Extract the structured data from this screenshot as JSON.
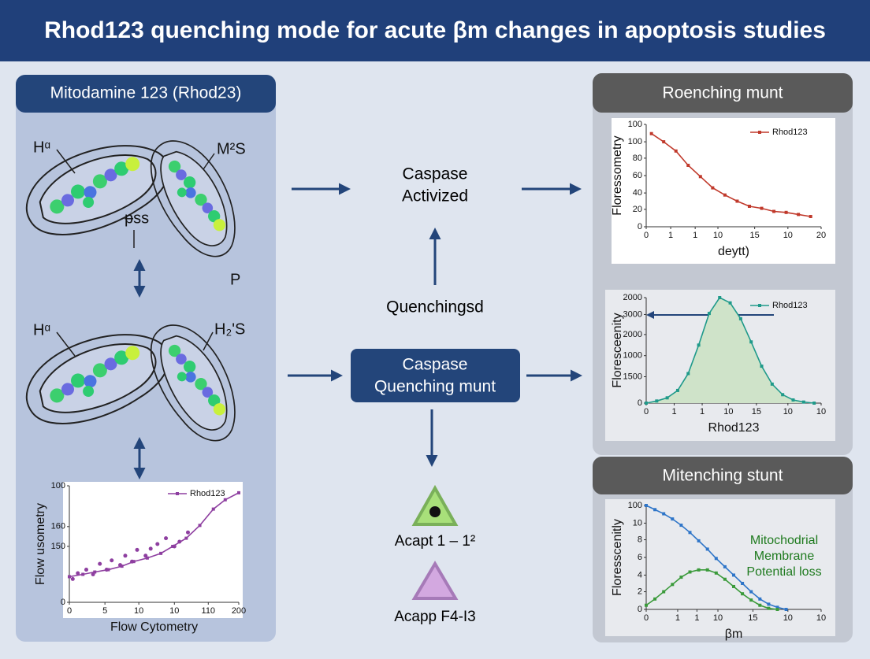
{
  "header": {
    "title": "Rhod123 quenching mode for acute βm changes in apoptosis studies"
  },
  "left_panel": {
    "title": "Mitodamine 123 (Rhod23)",
    "labels": [
      "Hᵅ",
      "M²S",
      "ᵽss",
      "P",
      "Hᵅ",
      "H₂'S"
    ]
  },
  "center": {
    "top_box": [
      "Caspase",
      "Activized"
    ],
    "quench_label": "Quenchingsd",
    "box": [
      "Caspase",
      "Quenching munt"
    ],
    "triangle_labels": [
      "Acapt 1 – 1²",
      "Acapp F4-I3"
    ]
  },
  "right_panels": {
    "titles": [
      "Roenching munt",
      "Mitenching stunt"
    ]
  },
  "charts": [
    {
      "type": "scatter",
      "xlabel": "Flow Cytometry",
      "ylabel": "Flow usometry",
      "xlim": [
        0,
        100
      ],
      "ylim": [
        0,
        100
      ],
      "xticks": [
        0,
        {
          "value": 21,
          "label": "5"
        },
        {
          "value": 41,
          "label": "10"
        },
        {
          "value": 62,
          "label": "10"
        },
        {
          "value": 82,
          "label": "110"
        },
        {
          "value": 100,
          "label": "200"
        }
      ],
      "yticks": [
        0,
        {
          "value": 48,
          "label": "150"
        },
        {
          "value": 65,
          "label": "160"
        },
        100
      ],
      "series": [
        {
          "name": "Rhod123",
          "color": "#8e3fa0",
          "x": [
            0,
            8,
            15,
            23,
            31,
            38,
            46,
            54,
            61,
            69,
            77,
            85,
            92,
            100
          ],
          "values": [
            22,
            24,
            26,
            28,
            31,
            35,
            38,
            42,
            48,
            55,
            66,
            80,
            88,
            94
          ]
        }
      ],
      "points": {
        "color": "#8e3fa0",
        "x": [
          2,
          5,
          10,
          14,
          18,
          22,
          25,
          30,
          33,
          37,
          40,
          45,
          48,
          52,
          57,
          62,
          65,
          70
        ],
        "y": [
          20,
          25,
          28,
          24,
          33,
          28,
          36,
          32,
          40,
          35,
          45,
          40,
          46,
          50,
          55,
          48,
          52,
          60
        ]
      }
    },
    {
      "type": "line",
      "xlabel": "deytt)",
      "ylabel": "Floressometry",
      "xlim": [
        0,
        100
      ],
      "ylim": [
        0,
        100
      ],
      "xticks": [
        0,
        {
          "value": 14,
          "label": "1"
        },
        {
          "value": 28,
          "label": "1"
        },
        {
          "value": 41,
          "label": "10"
        },
        {
          "value": 62,
          "label": "15"
        },
        {
          "value": 81,
          "label": "10"
        },
        {
          "value": 100,
          "label": "20"
        }
      ],
      "yticks": [
        {
          "value": 0,
          "label": "0"
        },
        {
          "value": 17,
          "label": "20"
        },
        {
          "value": 33,
          "label": "40"
        },
        {
          "value": 50,
          "label": "60"
        },
        {
          "value": 67,
          "label": "80"
        },
        {
          "value": 83,
          "label": "100"
        },
        100
      ],
      "series": [
        {
          "name": "Rhod123",
          "color": "#c0392b",
          "x": [
            3,
            10,
            17,
            24,
            31,
            38,
            45,
            52,
            59,
            66,
            73,
            80,
            87,
            94
          ],
          "values": [
            91,
            83,
            74,
            60,
            49,
            38,
            31,
            25,
            20,
            18,
            15,
            14,
            12,
            10
          ]
        }
      ]
    },
    {
      "type": "line",
      "xlabel": "Rhod123",
      "ylabel": "Floresceenity",
      "xlim": [
        0,
        100
      ],
      "ylim": [
        0,
        100
      ],
      "fill": "#cfe3c9",
      "xticks": [
        0,
        {
          "value": 16,
          "label": "1"
        },
        {
          "value": 32,
          "label": "1"
        },
        {
          "value": 47,
          "label": "10"
        },
        {
          "value": 63,
          "label": "15"
        },
        {
          "value": 81,
          "label": "10"
        },
        {
          "value": 100,
          "label": "10"
        }
      ],
      "yticks": [
        0,
        {
          "value": 25,
          "label": "1500"
        },
        {
          "value": 45,
          "label": "1000"
        },
        {
          "value": 65,
          "label": "2000"
        },
        {
          "value": 84,
          "label": "3000"
        },
        {
          "value": 100,
          "label": "2000"
        }
      ],
      "series": [
        {
          "name": "Rhod123",
          "color": "#1f9a8a",
          "x": [
            0,
            6,
            12,
            18,
            24,
            30,
            36,
            42,
            48,
            54,
            60,
            66,
            72,
            78,
            84,
            90,
            96
          ],
          "values": [
            0,
            2,
            5,
            12,
            28,
            55,
            85,
            100,
            95,
            80,
            58,
            35,
            18,
            8,
            3,
            1,
            0
          ]
        }
      ]
    },
    {
      "type": "line",
      "xlabel": "βm",
      "ylabel": "Floresscenitly",
      "xlim": [
        0,
        100
      ],
      "ylim": [
        0,
        100
      ],
      "annotation": [
        "Mitochodrial",
        "Membrane",
        "Potential loss"
      ],
      "xticks": [
        0,
        {
          "value": 18,
          "label": "1"
        },
        {
          "value": 29,
          "label": "1"
        },
        {
          "value": 41,
          "label": "10"
        },
        {
          "value": 61,
          "label": "15"
        },
        {
          "value": 81,
          "label": "10"
        },
        {
          "value": 100,
          "label": "10"
        }
      ],
      "yticks": [
        0,
        {
          "value": 17,
          "label": "2"
        },
        {
          "value": 33,
          "label": "4"
        },
        {
          "value": 50,
          "label": "6"
        },
        {
          "value": 67,
          "label": "8"
        },
        {
          "value": 83,
          "label": "10"
        },
        100
      ],
      "series": [
        {
          "color": "#2e75c8",
          "x": [
            0,
            5,
            10,
            15,
            20,
            25,
            30,
            35,
            40,
            45,
            50,
            55,
            60,
            65,
            70,
            75,
            80
          ],
          "values": [
            100,
            96,
            92,
            87,
            81,
            74,
            66,
            58,
            49,
            41,
            33,
            25,
            17,
            10,
            5,
            2,
            0
          ]
        },
        {
          "color": "#3a9a3a",
          "x": [
            0,
            5,
            10,
            15,
            20,
            25,
            30,
            35,
            40,
            45,
            50,
            55,
            60,
            65,
            70,
            75
          ],
          "values": [
            4,
            10,
            17,
            24,
            31,
            36,
            38,
            38,
            35,
            29,
            22,
            15,
            9,
            4,
            1,
            0
          ]
        }
      ]
    }
  ]
}
